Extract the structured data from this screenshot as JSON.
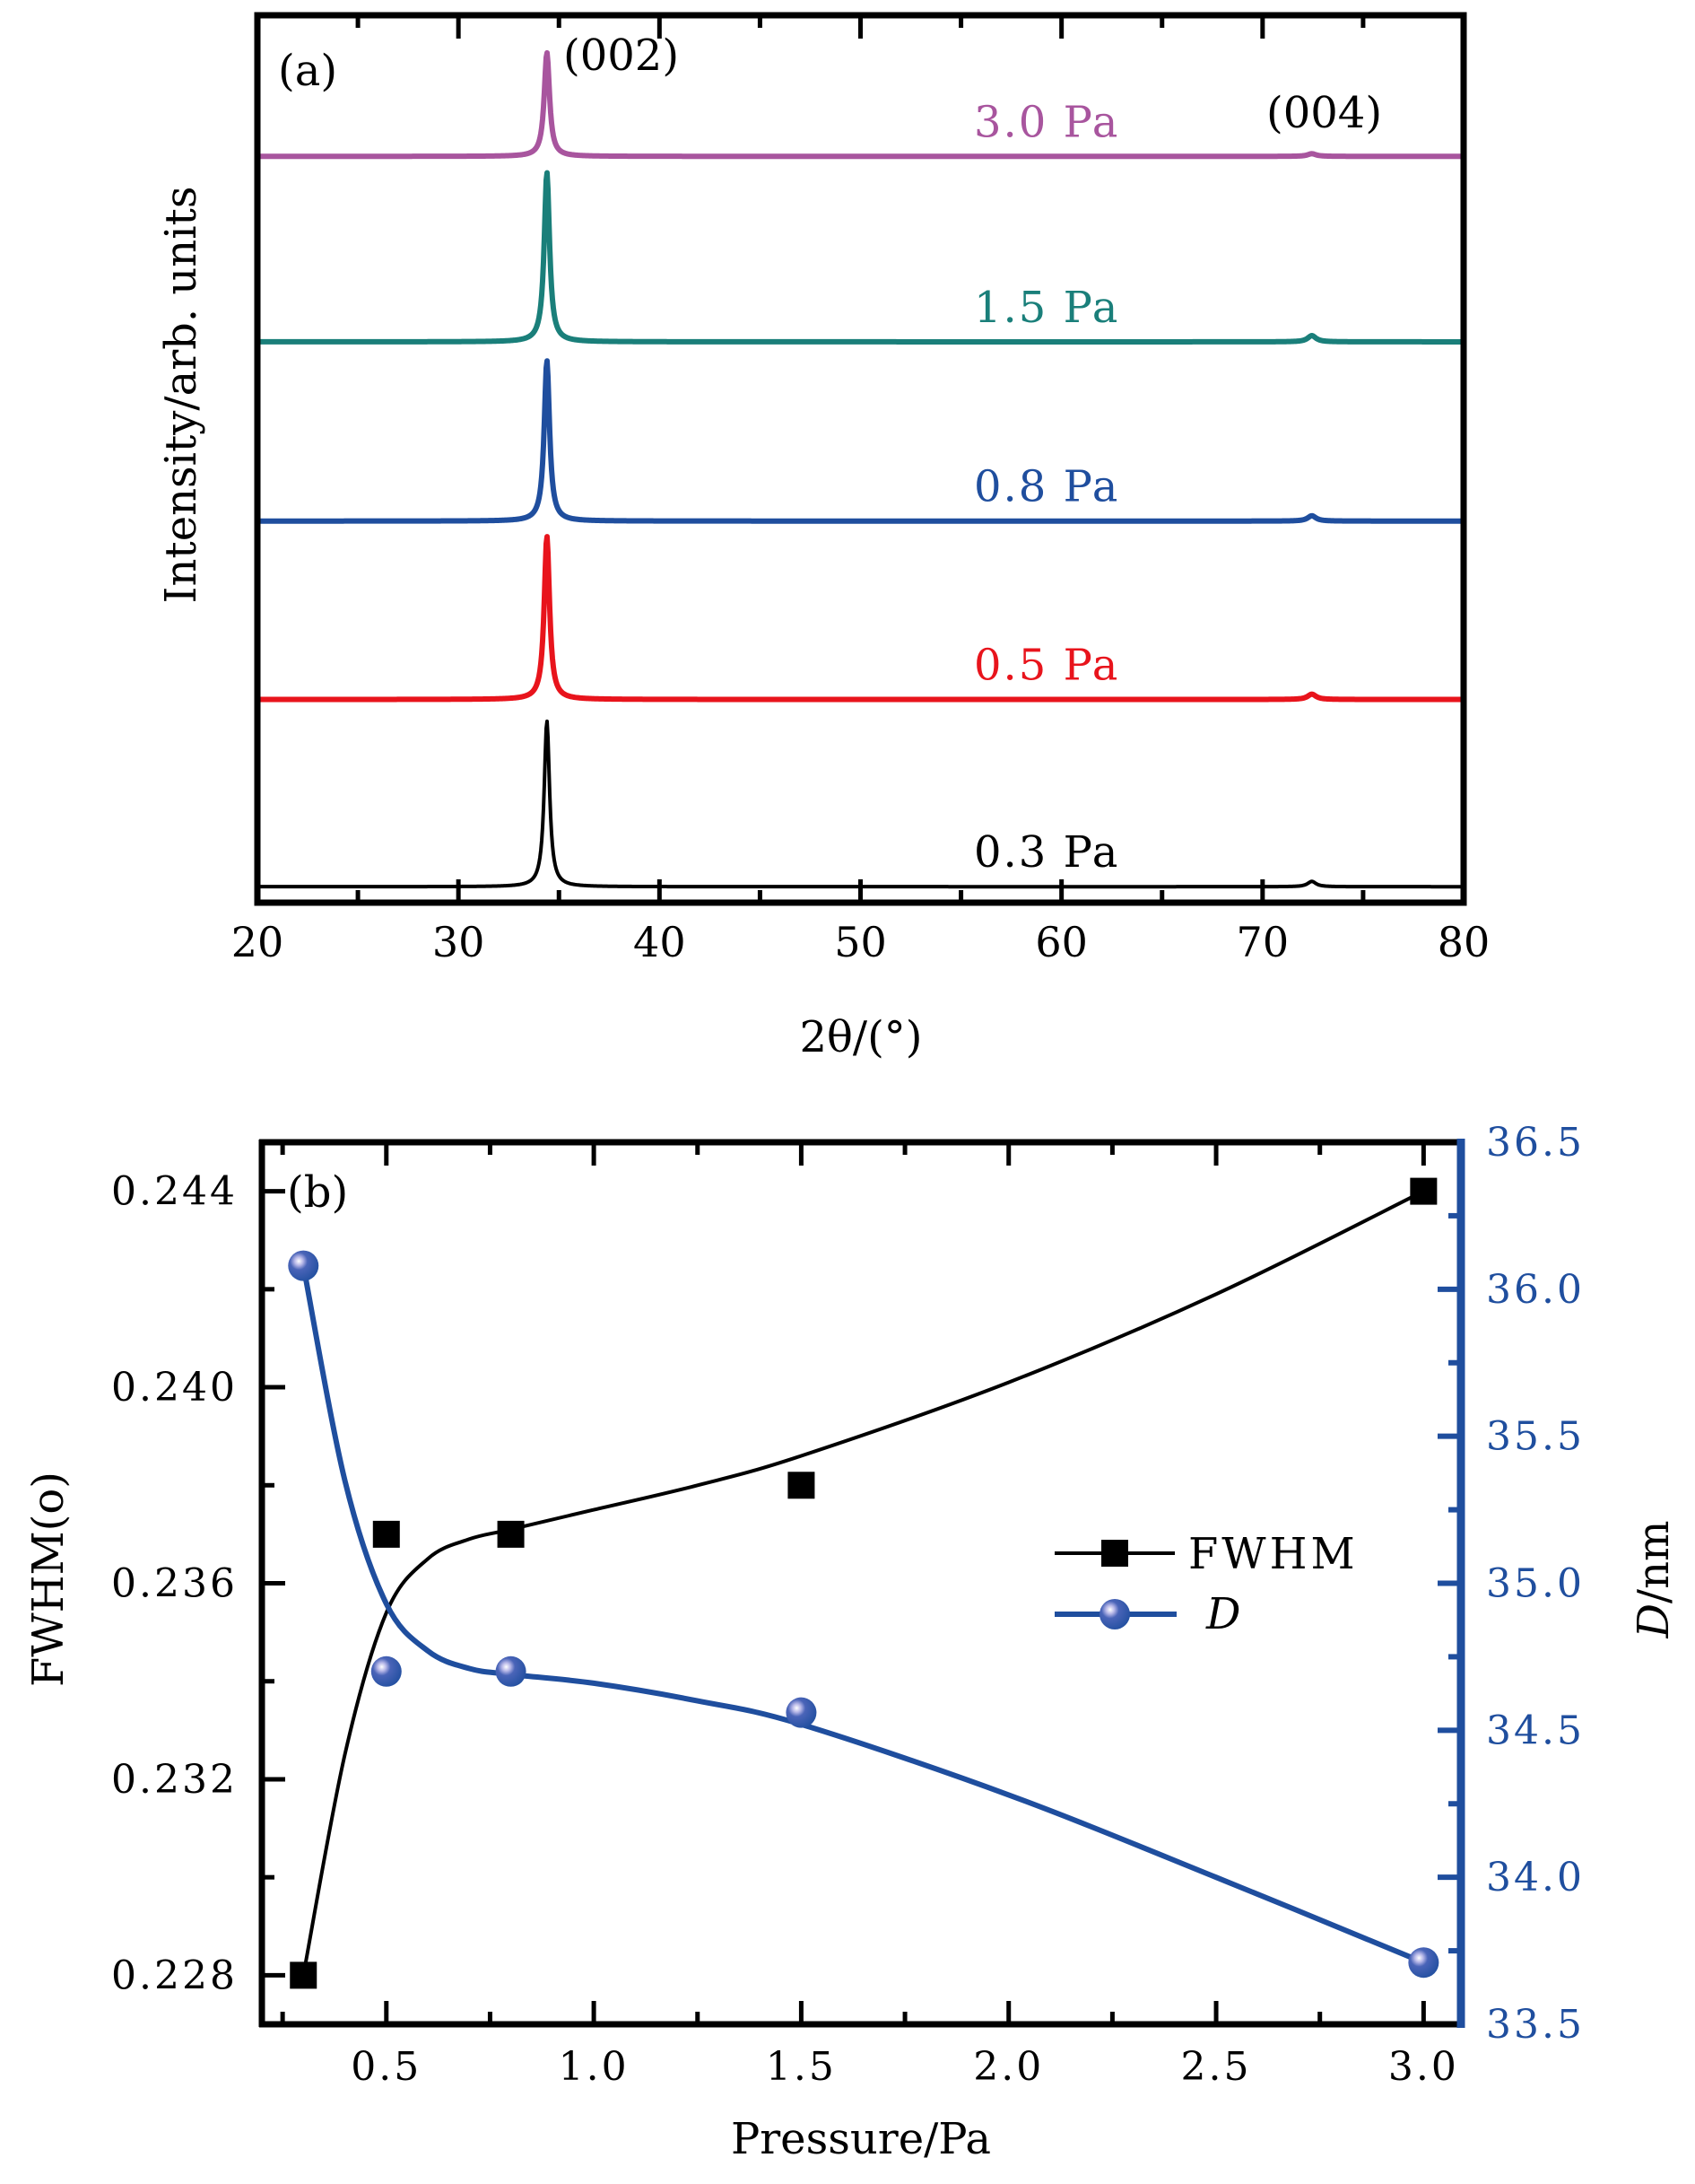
{
  "chart_data": [
    {
      "panel": "(a)",
      "type": "line",
      "xlabel": "2θ/(°)",
      "ylabel": "Intensity/arb. units",
      "xlim": [
        20,
        80
      ],
      "ylim": [
        0,
        100
      ],
      "x_ticks": [
        20,
        30,
        40,
        50,
        60,
        70,
        80
      ],
      "x_tick_labels": [
        "20",
        "30",
        "40",
        "50",
        "60",
        "70",
        "80"
      ],
      "x_minor_step": 5,
      "y_ticks": [],
      "grid": false,
      "peak_annotations": [
        {
          "label": "(002)",
          "position_deg": 34.4
        },
        {
          "label": "(004)",
          "position_deg": 72.45
        }
      ],
      "series": [
        {
          "name": "3.0 Pa",
          "label": "3.0 Pa",
          "color": "#a8559e",
          "baseline_offset": 84.1,
          "peak_002_height": 11.7,
          "peak_004_height": 0.3,
          "peak_002_deg": 34.4,
          "peak_004_deg": 72.45
        },
        {
          "name": "1.5 Pa",
          "label": "1.5 Pa",
          "color": "#1a7f7a",
          "baseline_offset": 63.2,
          "peak_002_height": 19.1,
          "peak_004_height": 0.7,
          "peak_002_deg": 34.4,
          "peak_004_deg": 72.45
        },
        {
          "name": "0.8 Pa",
          "label": "0.8 Pa",
          "color": "#1f4e9e",
          "baseline_offset": 43.0,
          "peak_002_height": 18.1,
          "peak_004_height": 0.6,
          "peak_002_deg": 34.4,
          "peak_004_deg": 72.45
        },
        {
          "name": "0.5 Pa",
          "label": "0.5 Pa",
          "color": "#e8141c",
          "baseline_offset": 22.9,
          "peak_002_height": 18.4,
          "peak_004_height": 0.6,
          "peak_002_deg": 34.4,
          "peak_004_deg": 72.45
        },
        {
          "name": "0.3 Pa",
          "label": "0.3 Pa",
          "color": "#000000",
          "baseline_offset": 1.8,
          "peak_002_height": 18.7,
          "peak_004_height": 0.6,
          "peak_002_deg": 34.4,
          "peak_004_deg": 72.45
        }
      ]
    },
    {
      "panel": "(b)",
      "type": "line",
      "xlabel": "Pressure/Pa",
      "ylabel": "FWHM(o)",
      "ylabel_right": "D/nm",
      "xlim": [
        0.2,
        3.09
      ],
      "ylim": [
        0.227,
        0.245
      ],
      "ylim_right": [
        33.5,
        36.5
      ],
      "x_ticks": [
        0.5,
        1.0,
        1.5,
        2.0,
        2.5,
        3.0
      ],
      "x_tick_labels": [
        "0.5",
        "1.0",
        "1.5",
        "2.0",
        "2.5",
        "3.0"
      ],
      "x_minor_step": 0.25,
      "y_ticks": [
        0.228,
        0.232,
        0.236,
        0.24,
        0.244
      ],
      "y_tick_labels": [
        "0.228",
        "0.232",
        "0.236",
        "0.240",
        "0.244"
      ],
      "y_minor_step": 0.002,
      "y_ticks_right": [
        33.5,
        34.0,
        34.5,
        35.0,
        35.5,
        36.0,
        36.5
      ],
      "y_tick_labels_right": [
        "33.5",
        "34.0",
        "34.5",
        "35.0",
        "35.5",
        "36.0",
        "36.5"
      ],
      "y_minor_step_right": 0.25,
      "right_axis_color": "#1f4e9e",
      "grid": false,
      "legend_position": "center-right",
      "series": [
        {
          "name": "FWHM",
          "legend_label": "FWHM",
          "axis": "left",
          "color": "#000000",
          "marker": "square",
          "x": [
            0.3,
            0.5,
            0.8,
            1.5,
            3.0
          ],
          "y": [
            0.228,
            0.237,
            0.237,
            0.238,
            0.244
          ],
          "fit_x": [
            0.3,
            0.4,
            0.5,
            0.6,
            0.7,
            0.8,
            1.0,
            1.25,
            1.5,
            2.0,
            2.5,
            3.0
          ],
          "fit_y": [
            0.228,
            0.2325,
            0.2354,
            0.2365,
            0.2369,
            0.2371,
            0.2375,
            0.238,
            0.2386,
            0.2401,
            0.2419,
            0.244
          ]
        },
        {
          "name": "D",
          "legend_label": "D",
          "axis": "right",
          "color": "#1f4e9e",
          "marker": "sphere",
          "x": [
            0.3,
            0.5,
            0.8,
            1.5,
            3.0
          ],
          "y": [
            36.08,
            34.7,
            34.7,
            34.56,
            33.71
          ],
          "fit_x": [
            0.3,
            0.4,
            0.5,
            0.6,
            0.7,
            0.8,
            1.0,
            1.25,
            1.5,
            2.0,
            2.5,
            3.0
          ],
          "fit_y": [
            36.08,
            35.35,
            34.93,
            34.77,
            34.71,
            34.69,
            34.66,
            34.6,
            34.52,
            34.28,
            34.0,
            33.71
          ]
        }
      ]
    }
  ]
}
